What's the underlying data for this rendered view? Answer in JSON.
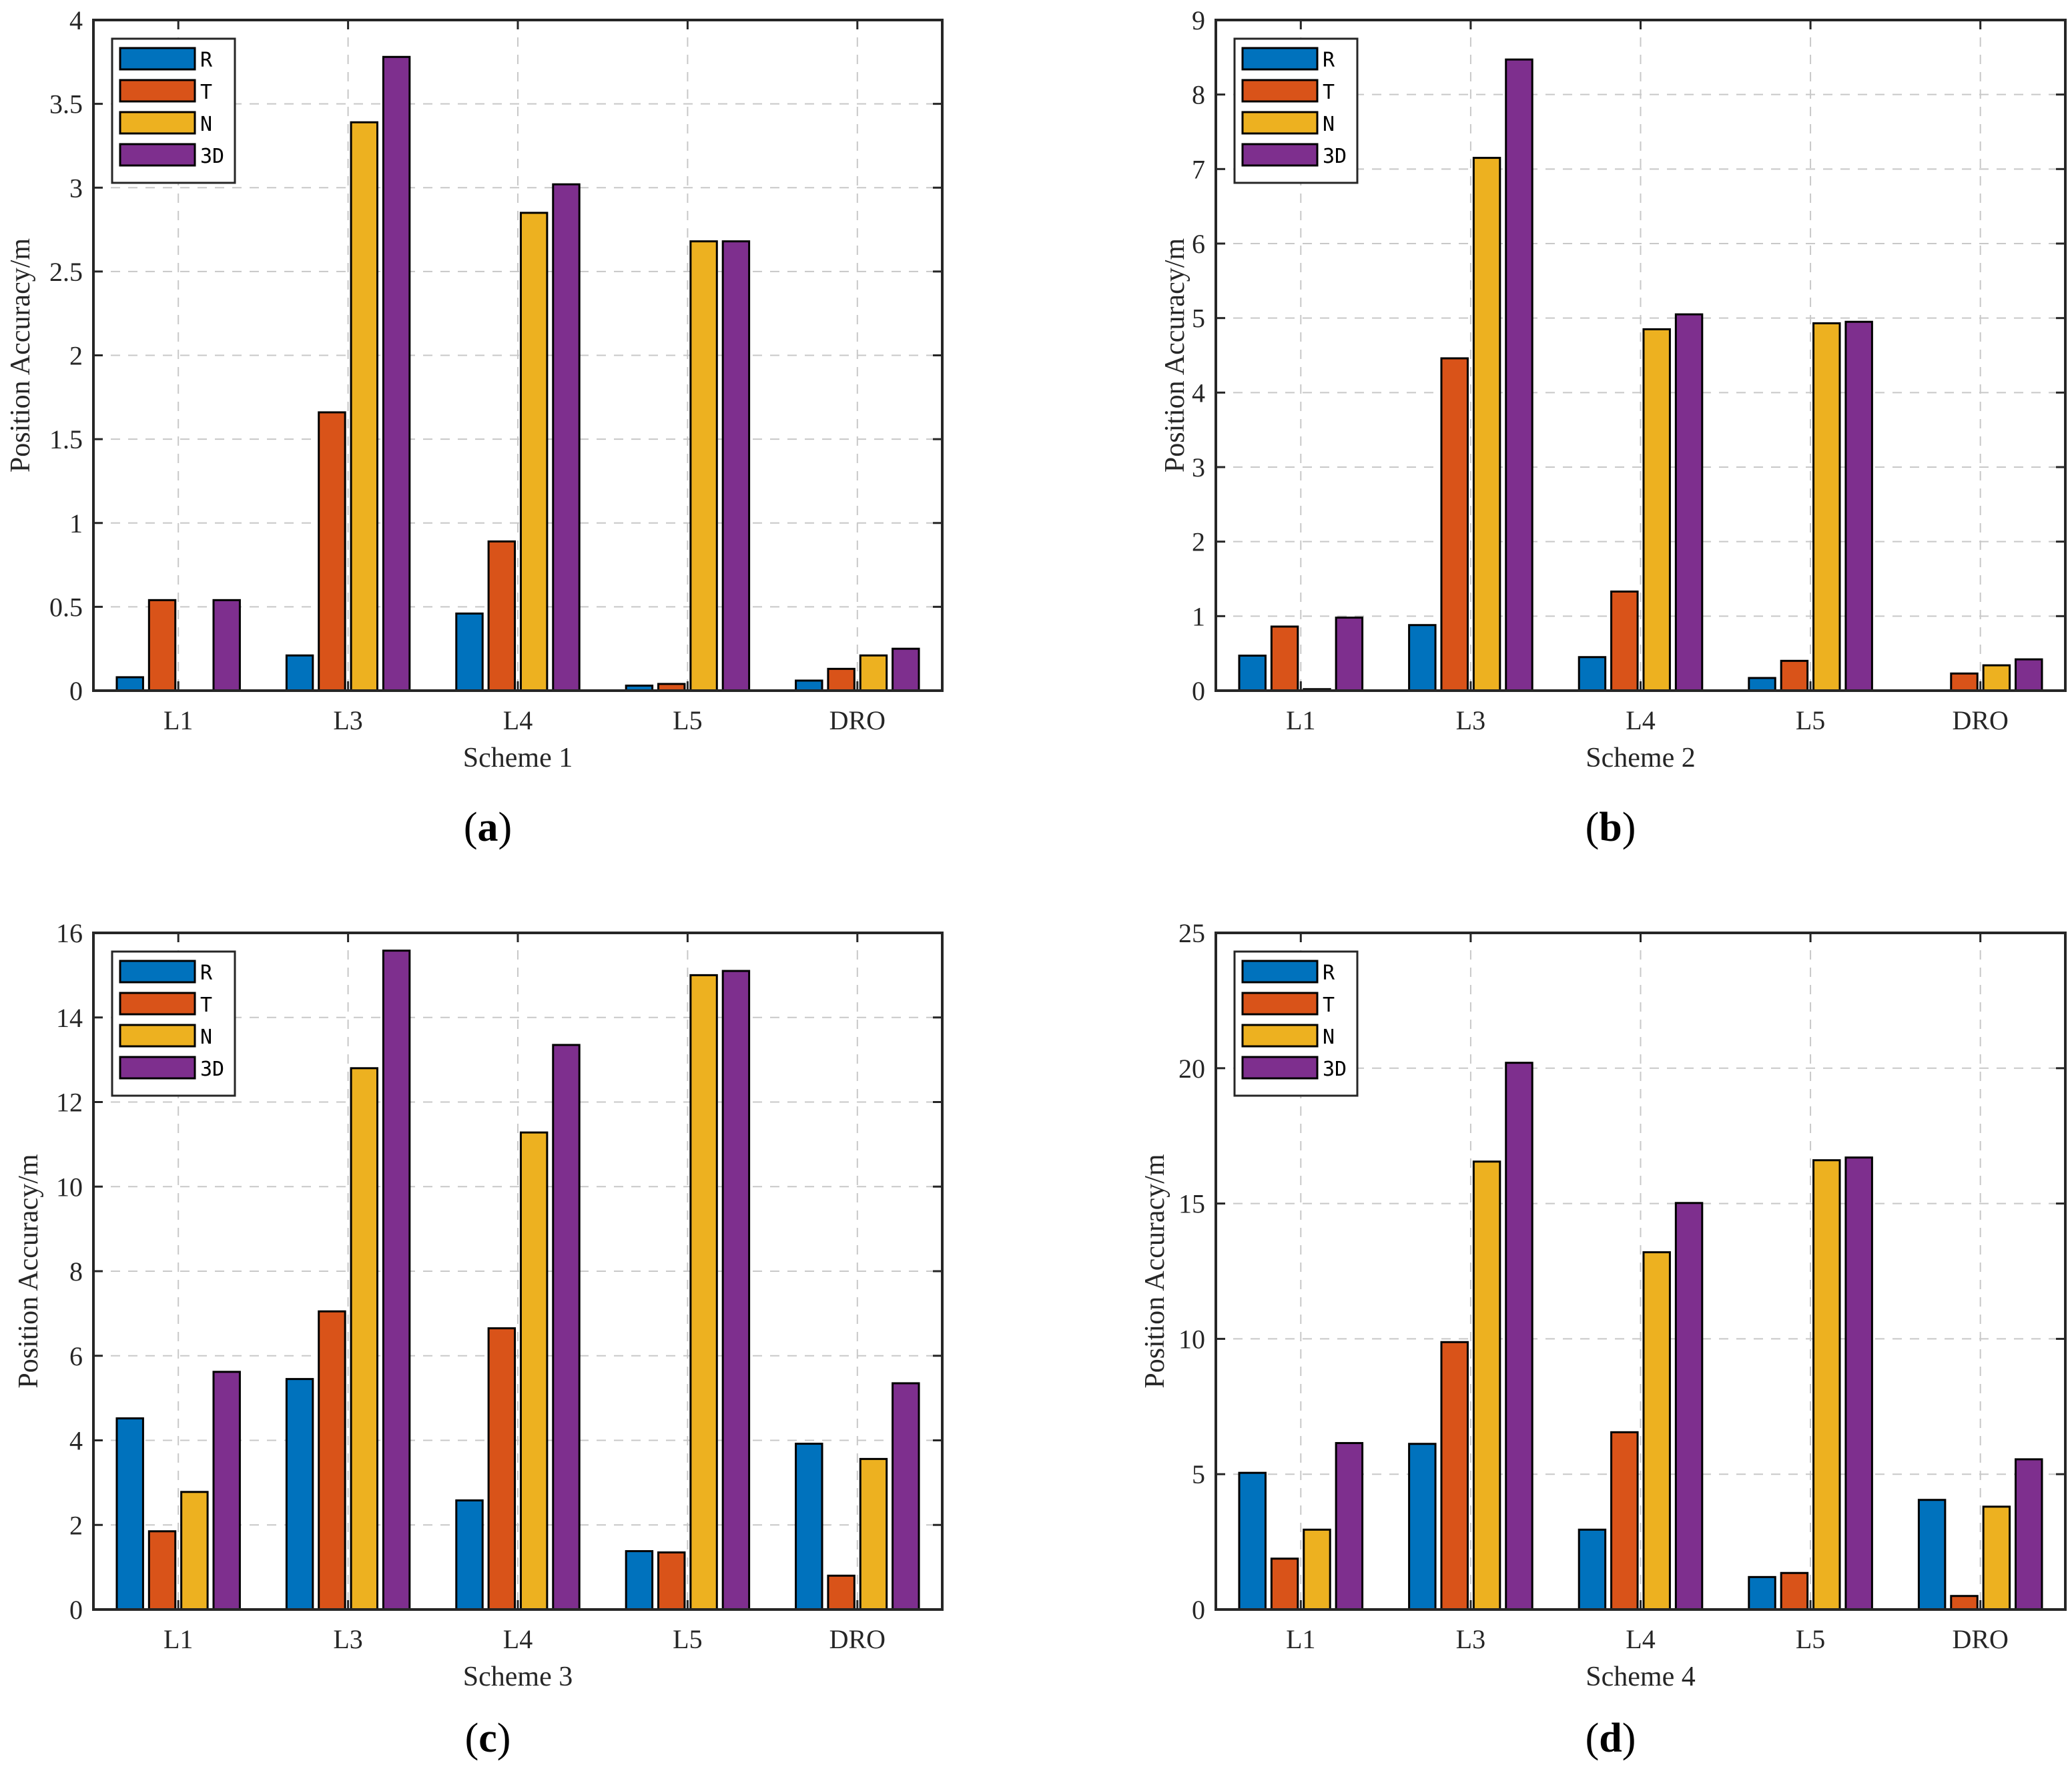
{
  "colors": {
    "R": "#0072BD",
    "T": "#D95319",
    "N": "#EDB120",
    "3D": "#7E2F8E"
  },
  "chart_data": [
    {
      "type": "bar",
      "id": "a",
      "caption_letter": "a",
      "categories": [
        "L1",
        "L3",
        "L4",
        "L5",
        "DRO"
      ],
      "series": [
        {
          "name": "R",
          "values": [
            0.08,
            0.21,
            0.46,
            0.03,
            0.06
          ]
        },
        {
          "name": "T",
          "values": [
            0.54,
            1.66,
            0.89,
            0.04,
            0.13
          ]
        },
        {
          "name": "N",
          "values": [
            0.0,
            3.39,
            2.85,
            2.68,
            0.21
          ]
        },
        {
          "name": "3D",
          "values": [
            0.54,
            3.78,
            3.02,
            2.68,
            0.25
          ]
        }
      ],
      "xlabel": "Scheme 1",
      "ylabel": "Position Accuracy/m",
      "ylim": [
        0,
        4
      ],
      "yticks": [
        "0",
        "0.5",
        "1",
        "1.5",
        "2",
        "2.5",
        "3",
        "3.5",
        "4"
      ],
      "ytick_values": [
        0,
        0.5,
        1,
        1.5,
        2,
        2.5,
        3,
        3.5,
        4
      ],
      "legend": "top-left",
      "grid": true
    },
    {
      "type": "bar",
      "id": "b",
      "caption_letter": "b",
      "categories": [
        "L1",
        "L3",
        "L4",
        "L5",
        "DRO"
      ],
      "series": [
        {
          "name": "R",
          "values": [
            0.47,
            0.88,
            0.45,
            0.17,
            0.0
          ]
        },
        {
          "name": "T",
          "values": [
            0.86,
            4.46,
            1.33,
            0.4,
            0.23
          ]
        },
        {
          "name": "N",
          "values": [
            0.02,
            7.15,
            4.85,
            4.93,
            0.34
          ]
        },
        {
          "name": "3D",
          "values": [
            0.98,
            8.47,
            5.05,
            4.95,
            0.42
          ]
        }
      ],
      "xlabel": "Scheme 2",
      "ylabel": "Position Accuracy/m",
      "ylim": [
        0,
        9
      ],
      "yticks": [
        "0",
        "1",
        "2",
        "3",
        "4",
        "5",
        "6",
        "7",
        "8",
        "9"
      ],
      "ytick_values": [
        0,
        1,
        2,
        3,
        4,
        5,
        6,
        7,
        8,
        9
      ],
      "legend": "top-left",
      "grid": true
    },
    {
      "type": "bar",
      "id": "c",
      "caption_letter": "c",
      "categories": [
        "L1",
        "L3",
        "L4",
        "L5",
        "DRO"
      ],
      "series": [
        {
          "name": "R",
          "values": [
            4.52,
            5.45,
            2.58,
            1.38,
            3.92
          ]
        },
        {
          "name": "T",
          "values": [
            1.85,
            7.05,
            6.65,
            1.35,
            0.8
          ]
        },
        {
          "name": "N",
          "values": [
            2.78,
            12.8,
            11.28,
            15.0,
            3.56
          ]
        },
        {
          "name": "3D",
          "values": [
            5.62,
            15.58,
            13.35,
            15.1,
            5.35
          ]
        }
      ],
      "xlabel": "Scheme 3",
      "ylabel": "Position Accuracy/m",
      "ylim": [
        0,
        16
      ],
      "yticks": [
        "0",
        "2",
        "4",
        "6",
        "8",
        "10",
        "12",
        "14",
        "16"
      ],
      "ytick_values": [
        0,
        2,
        4,
        6,
        8,
        10,
        12,
        14,
        16
      ],
      "legend": "top-left",
      "grid": true
    },
    {
      "type": "bar",
      "id": "d",
      "caption_letter": "d",
      "categories": [
        "L1",
        "L3",
        "L4",
        "L5",
        "DRO"
      ],
      "series": [
        {
          "name": "R",
          "values": [
            5.05,
            6.12,
            2.95,
            1.2,
            4.05
          ]
        },
        {
          "name": "T",
          "values": [
            1.88,
            9.88,
            6.55,
            1.35,
            0.5
          ]
        },
        {
          "name": "N",
          "values": [
            2.95,
            16.55,
            13.2,
            16.6,
            3.8
          ]
        },
        {
          "name": "3D",
          "values": [
            6.15,
            20.2,
            15.02,
            16.7,
            5.55
          ]
        }
      ],
      "xlabel": "Scheme 4",
      "ylabel": "Position Accuracy/m",
      "ylim": [
        0,
        25
      ],
      "yticks": [
        "0",
        "5",
        "10",
        "15",
        "20",
        "25"
      ],
      "ytick_values": [
        0,
        5,
        10,
        15,
        20,
        25
      ],
      "legend": "top-left",
      "grid": true
    }
  ]
}
